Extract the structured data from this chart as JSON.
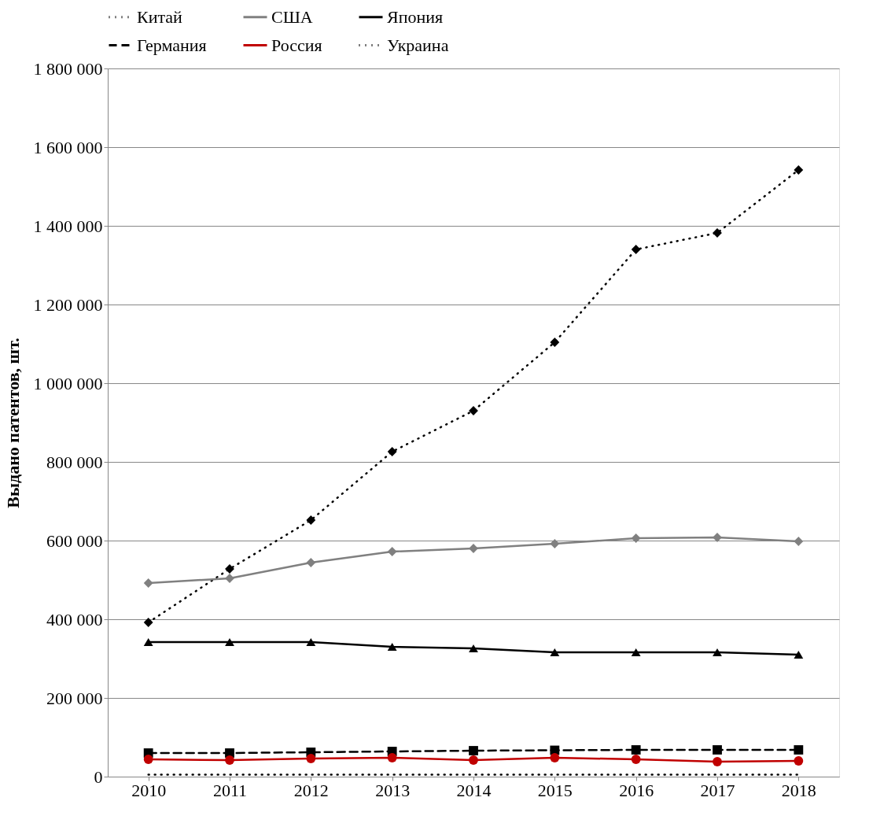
{
  "chart_data": {
    "type": "line",
    "ylabel": "Выдано патентов, шт.",
    "categories": [
      "2010",
      "2011",
      "2012",
      "2013",
      "2014",
      "2015",
      "2016",
      "2017",
      "2018"
    ],
    "ylim": [
      0,
      1800000
    ],
    "yticks": [
      {
        "value": 0,
        "label": "0"
      },
      {
        "value": 200000,
        "label": "200 000"
      },
      {
        "value": 400000,
        "label": "400 000"
      },
      {
        "value": 600000,
        "label": "600 000"
      },
      {
        "value": 800000,
        "label": "800 000"
      },
      {
        "value": 1000000,
        "label": "1 000 000"
      },
      {
        "value": 1200000,
        "label": "1 200 000"
      },
      {
        "value": 1400000,
        "label": "1 400 000"
      },
      {
        "value": 1600000,
        "label": "1 600 000"
      },
      {
        "value": 1800000,
        "label": "1 800 000"
      }
    ],
    "grid": "y",
    "legend": "top",
    "series": [
      {
        "name": "Китай",
        "color": "#000000",
        "marker": "diamond",
        "line_style": "dotted",
        "values": [
          392000,
          528000,
          652000,
          826000,
          930000,
          1104000,
          1340000,
          1382000,
          1542000
        ]
      },
      {
        "name": "США",
        "color": "#808080",
        "marker": "diamond",
        "line_style": "solid",
        "values": [
          492000,
          504000,
          544000,
          572000,
          580000,
          592000,
          606000,
          608000,
          598000
        ]
      },
      {
        "name": "Япония",
        "color": "#000000",
        "marker": "triangle",
        "line_style": "solid",
        "values": [
          342000,
          342000,
          342000,
          330000,
          326000,
          316000,
          316000,
          316000,
          310000
        ]
      },
      {
        "name": "Германия",
        "color": "#000000",
        "marker": "square",
        "line_style": "dashed",
        "values": [
          60000,
          60000,
          62000,
          64000,
          66000,
          67000,
          68000,
          68000,
          68000
        ]
      },
      {
        "name": "Россия",
        "color": "#c00000",
        "marker": "circle",
        "line_style": "solid",
        "values": [
          44000,
          42000,
          46000,
          48000,
          42000,
          48000,
          44000,
          38000,
          40000
        ]
      },
      {
        "name": "Украина",
        "color": "#000000",
        "marker": "none",
        "line_style": "dotted",
        "values": [
          5000,
          5000,
          5000,
          5000,
          5000,
          5000,
          5000,
          5000,
          5000
        ]
      }
    ]
  }
}
